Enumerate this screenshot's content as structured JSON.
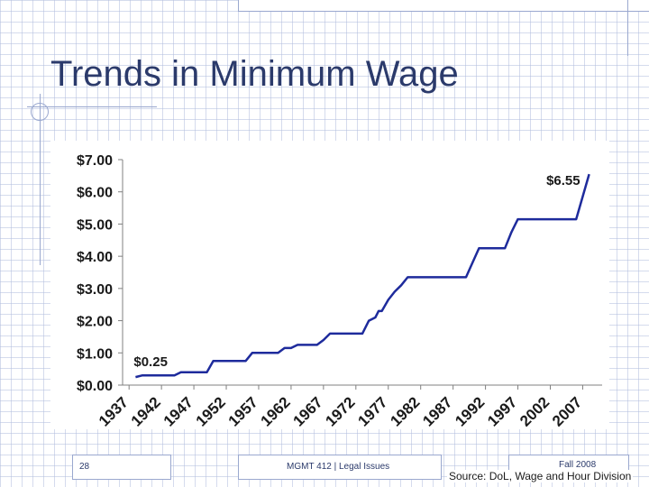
{
  "slide": {
    "title": "Trends in Minimum Wage",
    "page_number": "28",
    "course": "MGMT 412 | Legal Issues",
    "term": "Fall 2008",
    "source": "Source: DoL, Wage and Hour Division"
  },
  "colors": {
    "title": "#2b3a6b",
    "line": "#1e2b9c",
    "axis_text": "#1a1a1a"
  },
  "chart_data": {
    "type": "line",
    "title": "",
    "xlabel": "",
    "ylabel": "",
    "xlim": [
      1936,
      2010
    ],
    "ylim": [
      0,
      7
    ],
    "y_ticks": [
      "$0.00",
      "$1.00",
      "$2.00",
      "$3.00",
      "$4.00",
      "$5.00",
      "$6.00",
      "$7.00"
    ],
    "x_ticks": [
      "1937",
      "1942",
      "1947",
      "1952",
      "1957",
      "1962",
      "1967",
      "1972",
      "1977",
      "1982",
      "1987",
      "1992",
      "1997",
      "2002",
      "2007"
    ],
    "grid": false,
    "series": [
      {
        "points": [
          [
            1938,
            0.25
          ],
          [
            1939,
            0.3
          ],
          [
            1944,
            0.3
          ],
          [
            1945,
            0.4
          ],
          [
            1949,
            0.4
          ],
          [
            1950,
            0.75
          ],
          [
            1955,
            0.75
          ],
          [
            1956,
            1.0
          ],
          [
            1960,
            1.0
          ],
          [
            1961,
            1.15
          ],
          [
            1962,
            1.15
          ],
          [
            1963,
            1.25
          ],
          [
            1966,
            1.25
          ],
          [
            1967,
            1.4
          ],
          [
            1968,
            1.6
          ],
          [
            1973,
            1.6
          ],
          [
            1974,
            2.0
          ],
          [
            1975,
            2.1
          ],
          [
            1975.5,
            2.3
          ],
          [
            1976,
            2.3
          ],
          [
            1977,
            2.65
          ],
          [
            1978,
            2.9
          ],
          [
            1979,
            3.1
          ],
          [
            1980,
            3.35
          ],
          [
            1989,
            3.35
          ],
          [
            1990,
            3.8
          ],
          [
            1991,
            4.25
          ],
          [
            1995,
            4.25
          ],
          [
            1996,
            4.75
          ],
          [
            1997,
            5.15
          ],
          [
            2006,
            5.15
          ],
          [
            2007,
            5.85
          ],
          [
            2008,
            6.55
          ]
        ]
      }
    ],
    "annotations": [
      {
        "text": "$0.25",
        "x": 1938,
        "y": 0.25
      },
      {
        "text": "$6.55",
        "x": 2008,
        "y": 6.55
      }
    ]
  }
}
